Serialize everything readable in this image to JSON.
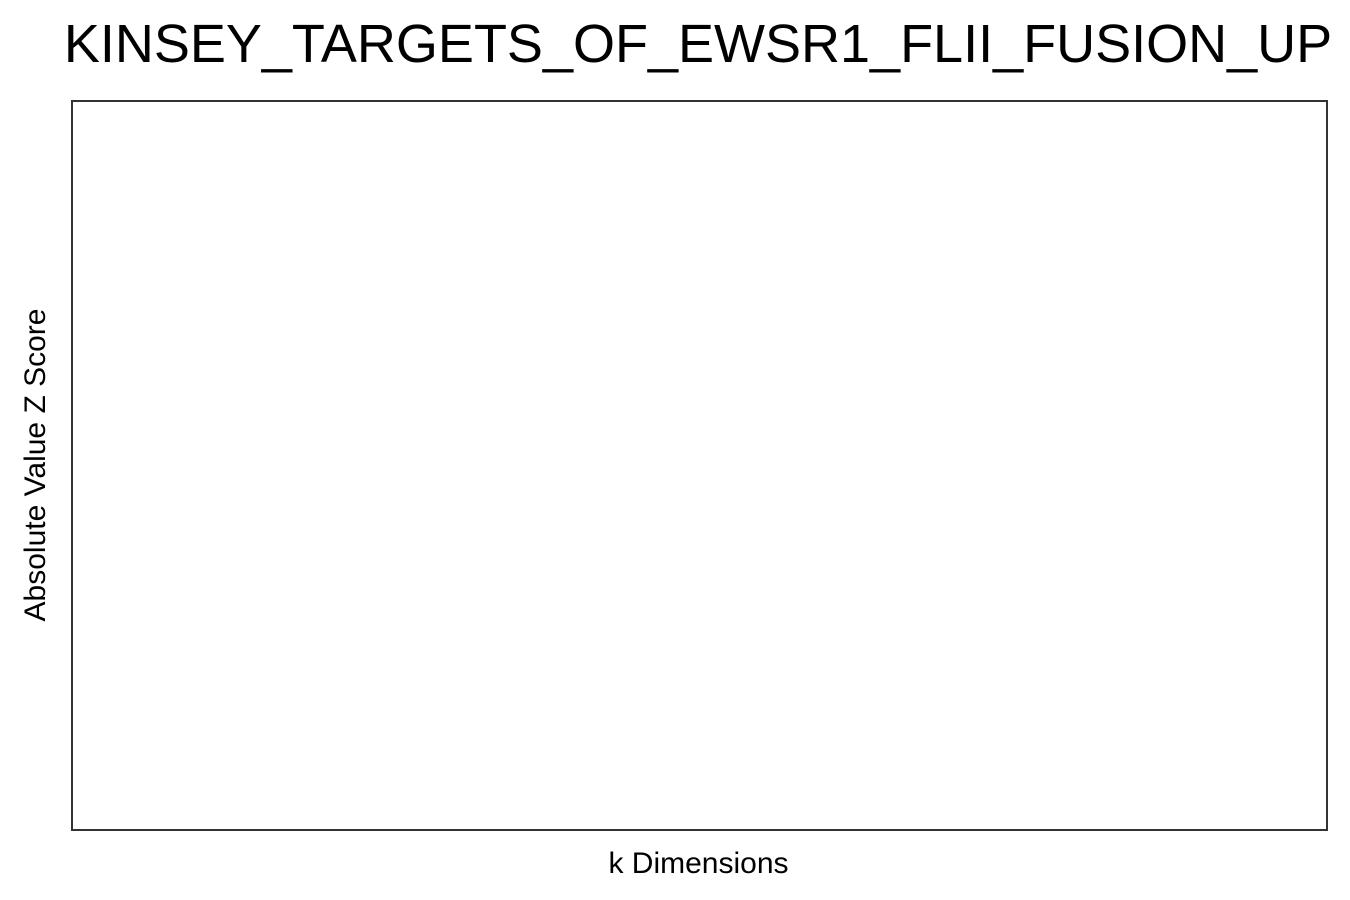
{
  "chart_data": {
    "type": "line",
    "title": "KINSEY_TARGETS_OF_EWSR1_FLII_FUSION_UP",
    "xlabel": "k Dimensions",
    "ylabel": "Absolute Value Z Score",
    "series": [],
    "grid": false,
    "legend": "none"
  }
}
